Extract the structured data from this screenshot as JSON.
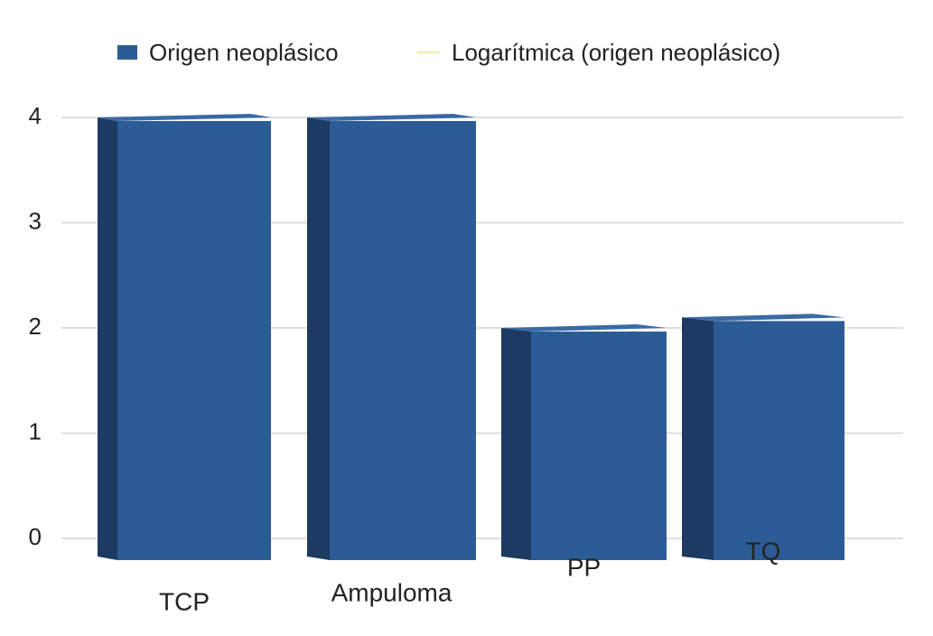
{
  "chart_data": {
    "type": "bar",
    "categories": [
      "TCP",
      "Ampuloma",
      "PP",
      "TQ"
    ],
    "series": [
      {
        "name": "Origen neoplásico",
        "color": "#2c5c96",
        "values": [
          4,
          4,
          2,
          2.1
        ]
      },
      {
        "name": "Logarítmica (origen neoplásico)",
        "color": "#f3e9a6",
        "values": [
          null,
          null,
          null,
          null
        ]
      }
    ],
    "ylim": [
      0,
      4
    ],
    "yticks": [
      0,
      1,
      2,
      3,
      4
    ],
    "grid": true
  }
}
